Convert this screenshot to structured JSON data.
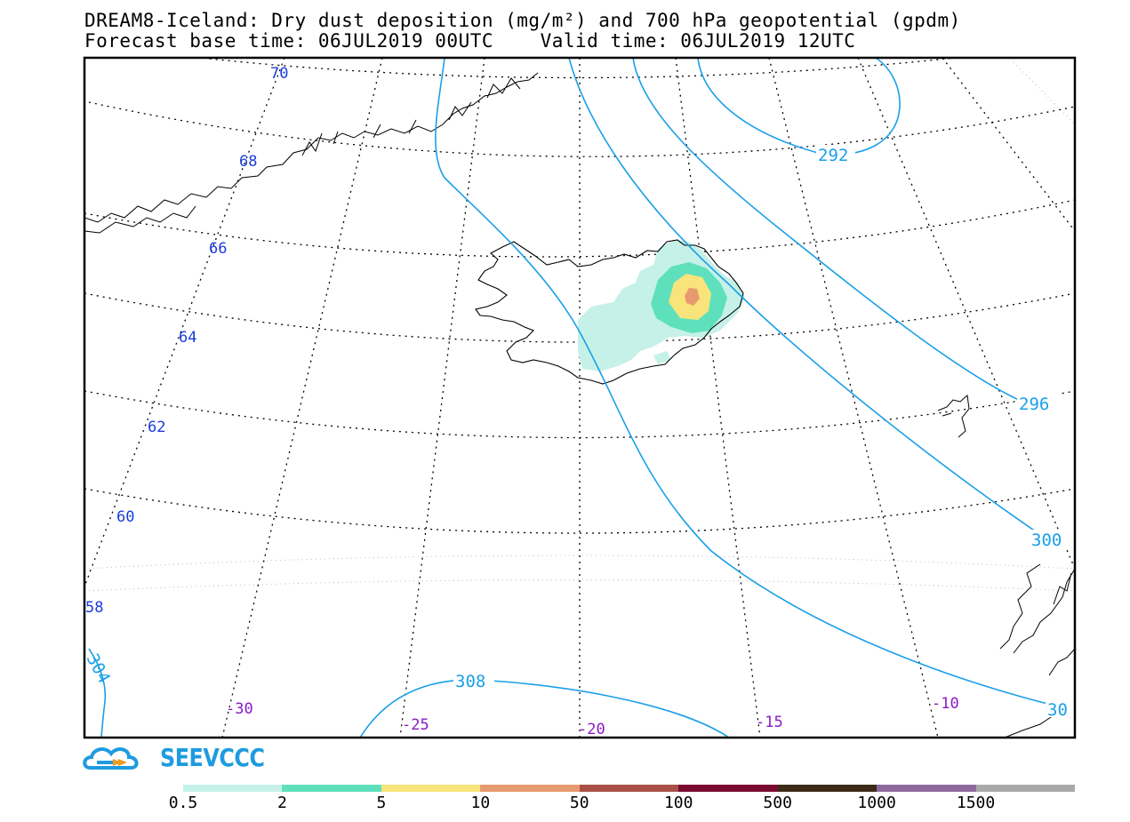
{
  "title": {
    "line1": "DREAM8-Iceland: Dry dust deposition (mg/m²) and 700 hPa geopotential (gpdm)",
    "line2": "Forecast base time: 06JUL2019 00UTC    Valid time: 06JUL2019 12UTC"
  },
  "map": {
    "latitude_labels": [
      "70",
      "68",
      "66",
      "64",
      "62",
      "60",
      "58"
    ],
    "longitude_labels": [
      "-30",
      "-25",
      "-20",
      "-15",
      "-10"
    ],
    "contour_labels": [
      "292",
      "296",
      "300",
      "30",
      "308",
      "304"
    ],
    "colors": {
      "graticule": "#000000",
      "coastline": "#000000",
      "contour": "#1aa0e8",
      "lat_label": "#1a3ddb",
      "lon_label": "#8a19c8",
      "frame": "#000000"
    }
  },
  "logo": {
    "text": "SEEVCCC",
    "color": "#1e9be0",
    "accent": "#f39a1d"
  },
  "legend": {
    "labels": [
      "0.5",
      "2",
      "5",
      "10",
      "50",
      "100",
      "500",
      "1000",
      "1500"
    ],
    "colors": [
      "#c5f1e8",
      "#5ee0bd",
      "#f8e47a",
      "#e89a6f",
      "#a85046",
      "#7a0c32",
      "#3d2a17",
      "#8e6a9c",
      "#a9a9a9"
    ]
  }
}
